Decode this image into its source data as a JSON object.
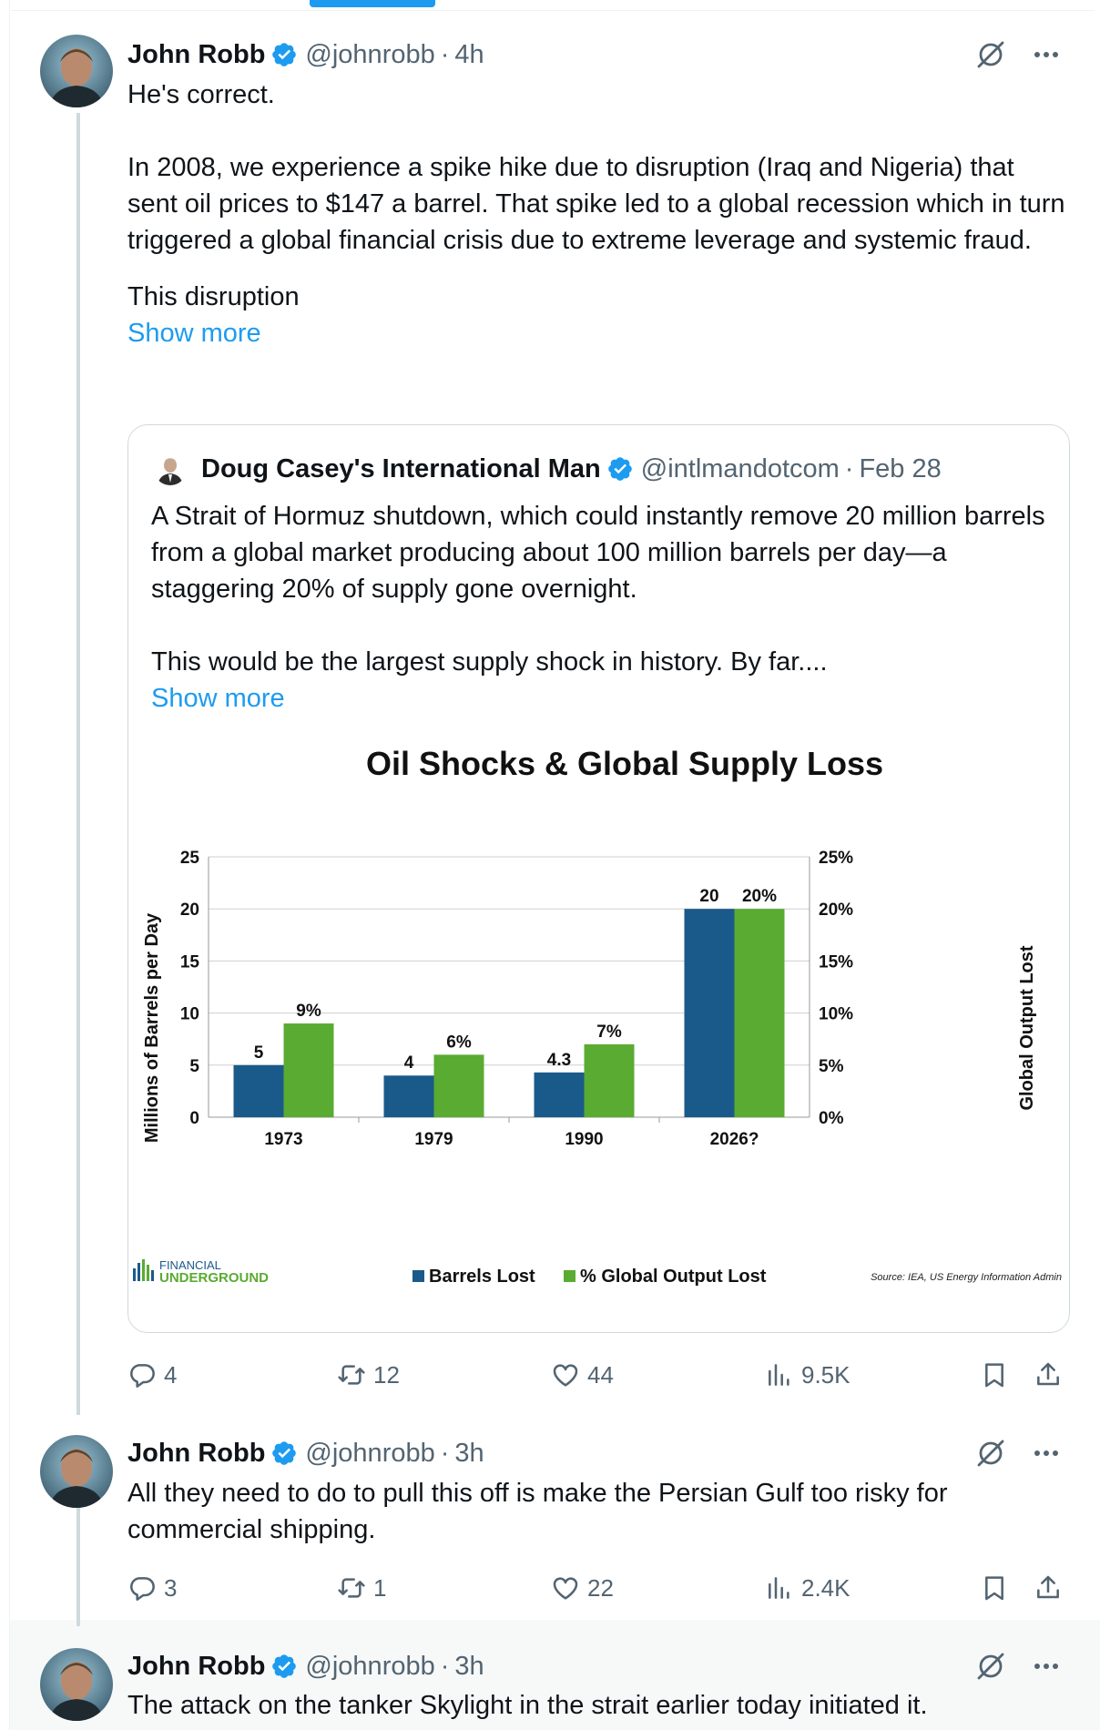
{
  "tweets": [
    {
      "name": "John Robb",
      "handle": "@johnrobb",
      "dot": "·",
      "time": "4h",
      "paragraphs": [
        "He's correct.",
        "In 2008, we experience a spike hike due to disruption (Iraq and Nigeria) that sent oil prices to $147 a barrel.  That spike led to a global recession which in turn triggered a global financial crisis due to extreme leverage and systemic fraud.",
        "This disruption"
      ],
      "show_more": "Show more",
      "stats": {
        "replies": "4",
        "reposts": "12",
        "likes": "44",
        "views": "9.5K"
      }
    },
    {
      "name": "John Robb",
      "handle": "@johnrobb",
      "dot": "·",
      "time": "3h",
      "paragraphs": [
        "All they need to do to pull this off is make the Persian Gulf too risky for commercial shipping."
      ],
      "stats": {
        "replies": "3",
        "reposts": "1",
        "likes": "22",
        "views": "2.4K"
      }
    },
    {
      "name": "John Robb",
      "handle": "@johnrobb",
      "dot": "·",
      "time": "3h",
      "paragraphs": [
        "The attack on the tanker Skylight in the strait earlier today initiated it."
      ]
    }
  ],
  "quote": {
    "name": "Doug Casey's International Man",
    "handle": "@intlmandotcom",
    "dot": "·",
    "time": "Feb 28",
    "paragraphs": [
      "A Strait of Hormuz shutdown, which could instantly remove 20 million barrels from a global market producing about 100 million barrels per day—a staggering 20% of supply gone overnight.",
      "This would be the largest supply shock in history. By far...."
    ],
    "show_more": "Show more"
  },
  "chart_data": {
    "type": "bar",
    "title": "Oil Shocks & Global Supply Loss",
    "categories": [
      "1973",
      "1979",
      "1990",
      "2026?"
    ],
    "series": [
      {
        "name": "Barrels Lost",
        "axis": "left",
        "color": "#1a5a8a",
        "values": [
          5,
          4,
          4.3,
          20
        ],
        "labels": [
          "5",
          "4",
          "4.3",
          "20"
        ]
      },
      {
        "name": "% Global Output Lost",
        "axis": "right",
        "color": "#5aab32",
        "values": [
          9,
          6,
          7,
          20
        ],
        "labels": [
          "9%",
          "6%",
          "7%",
          "20%"
        ]
      }
    ],
    "ylabel": "Millions of Barrels per Day",
    "y2label": "Global Output Lost",
    "ylim": [
      0,
      25
    ],
    "y2lim": [
      0,
      25
    ],
    "yticks": [
      "0",
      "5",
      "10",
      "15",
      "20",
      "25"
    ],
    "y2ticks": [
      "0%",
      "5%",
      "10%",
      "15%",
      "20%",
      "25%"
    ],
    "grid": true,
    "legend_position": "bottom",
    "source": "Source: IEA, US Energy Information Admin",
    "logo_line1": "FINANCIAL",
    "logo_line2": "UNDERGROUND"
  },
  "colors": {
    "accent": "#1d9bf0",
    "text": "#0f1419",
    "secondary": "#536471",
    "border": "#cfd9de"
  }
}
